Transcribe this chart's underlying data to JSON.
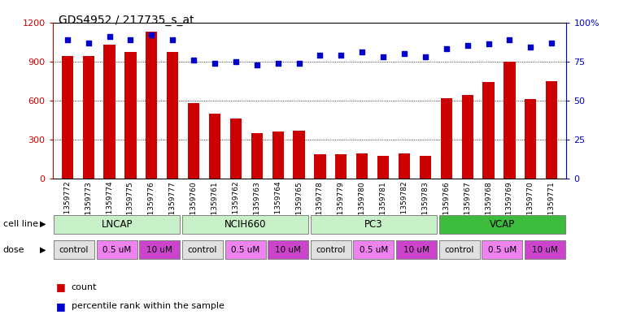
{
  "title": "GDS4952 / 217735_s_at",
  "samples": [
    "GSM1359772",
    "GSM1359773",
    "GSM1359774",
    "GSM1359775",
    "GSM1359776",
    "GSM1359777",
    "GSM1359760",
    "GSM1359761",
    "GSM1359762",
    "GSM1359763",
    "GSM1359764",
    "GSM1359765",
    "GSM1359778",
    "GSM1359779",
    "GSM1359780",
    "GSM1359781",
    "GSM1359782",
    "GSM1359783",
    "GSM1359766",
    "GSM1359767",
    "GSM1359768",
    "GSM1359769",
    "GSM1359770",
    "GSM1359771"
  ],
  "counts": [
    940,
    940,
    1030,
    970,
    1130,
    970,
    580,
    500,
    460,
    350,
    360,
    370,
    185,
    190,
    195,
    175,
    195,
    175,
    615,
    640,
    740,
    900,
    610,
    750
  ],
  "percentiles": [
    89,
    87,
    91,
    89,
    92,
    89,
    76,
    74,
    75,
    73,
    74,
    74,
    79,
    79,
    81,
    78,
    80,
    78,
    83,
    85,
    86,
    89,
    84,
    87
  ],
  "cell_lines": [
    {
      "label": "LNCAP",
      "start": 0,
      "end": 6,
      "color_light": "#c8f0c8",
      "color_dark": "#c8f0c8"
    },
    {
      "label": "NCIH660",
      "start": 6,
      "end": 12,
      "color_light": "#c8f0c8",
      "color_dark": "#c8f0c8"
    },
    {
      "label": "PC3",
      "start": 12,
      "end": 18,
      "color_light": "#c8f0c8",
      "color_dark": "#c8f0c8"
    },
    {
      "label": "VCAP",
      "start": 18,
      "end": 24,
      "color_light": "#3dbb3d",
      "color_dark": "#3dbb3d"
    }
  ],
  "doses": [
    {
      "label": "control",
      "start": 0,
      "end": 2,
      "bg": "#e0e0e0"
    },
    {
      "label": "0.5 uM",
      "start": 2,
      "end": 4,
      "bg": "#ee82ee"
    },
    {
      "label": "10 uM",
      "start": 4,
      "end": 6,
      "bg": "#cc44cc"
    },
    {
      "label": "control",
      "start": 6,
      "end": 8,
      "bg": "#e0e0e0"
    },
    {
      "label": "0.5 uM",
      "start": 8,
      "end": 10,
      "bg": "#ee82ee"
    },
    {
      "label": "10 uM",
      "start": 10,
      "end": 12,
      "bg": "#cc44cc"
    },
    {
      "label": "control",
      "start": 12,
      "end": 14,
      "bg": "#e0e0e0"
    },
    {
      "label": "0.5 uM",
      "start": 14,
      "end": 16,
      "bg": "#ee82ee"
    },
    {
      "label": "10 uM",
      "start": 16,
      "end": 18,
      "bg": "#cc44cc"
    },
    {
      "label": "control",
      "start": 18,
      "end": 20,
      "bg": "#e0e0e0"
    },
    {
      "label": "0.5 uM",
      "start": 20,
      "end": 22,
      "bg": "#ee82ee"
    },
    {
      "label": "10 uM",
      "start": 22,
      "end": 24,
      "bg": "#cc44cc"
    }
  ],
  "bar_color": "#cc0000",
  "dot_color": "#0000cc",
  "left_ylim": [
    0,
    1200
  ],
  "right_ylim": [
    0,
    100
  ],
  "left_yticks": [
    0,
    300,
    600,
    900,
    1200
  ],
  "right_yticks": [
    0,
    25,
    50,
    75,
    100
  ],
  "right_yticklabels": [
    "0",
    "25",
    "50",
    "75",
    "100%"
  ],
  "grid_values": [
    300,
    600,
    900
  ],
  "bg_color": "#ffffff"
}
